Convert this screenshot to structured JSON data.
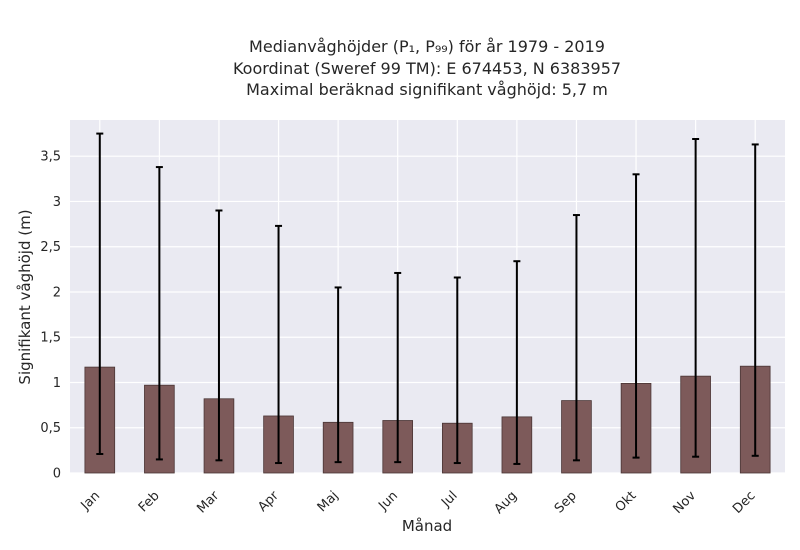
{
  "chart_data": {
    "type": "bar",
    "title_lines": [
      "Medianvåghöjder (P₁, P₉₉) för år 1979 - 2019",
      "Koordinat (Sweref 99 TM): E 674453, N 6383957",
      "Maximal beräknad signifikant våghöjd: 5,7 m"
    ],
    "xlabel": "Månad",
    "ylabel": "Signifikant våghöjd (m)",
    "categories": [
      "Jan",
      "Feb",
      "Mar",
      "Apr",
      "Maj",
      "Jun",
      "Jul",
      "Aug",
      "Sep",
      "Okt",
      "Nov",
      "Dec"
    ],
    "values": [
      1.17,
      0.97,
      0.82,
      0.63,
      0.56,
      0.58,
      0.55,
      0.62,
      0.8,
      0.99,
      1.07,
      1.18
    ],
    "error_low": [
      0.21,
      0.15,
      0.14,
      0.11,
      0.12,
      0.12,
      0.11,
      0.1,
      0.14,
      0.17,
      0.18,
      0.19
    ],
    "error_high": [
      3.75,
      3.38,
      2.9,
      2.73,
      2.05,
      2.21,
      2.16,
      2.34,
      2.85,
      3.3,
      3.69,
      3.63
    ],
    "ylim": [
      0,
      3.9
    ],
    "yticks": [
      0,
      0.5,
      1,
      1.5,
      2,
      2.5,
      3,
      3.5
    ],
    "ytick_labels": [
      "0",
      "0,5",
      "1",
      "1,5",
      "2",
      "2,5",
      "3",
      "3,5"
    ],
    "grid": true,
    "colors": {
      "bar_fill": "#7d5a5a",
      "bar_edge": "#4a3535",
      "error_bar": "#000000",
      "plot_background": "#eaeaf2",
      "grid": "#ffffff"
    }
  }
}
